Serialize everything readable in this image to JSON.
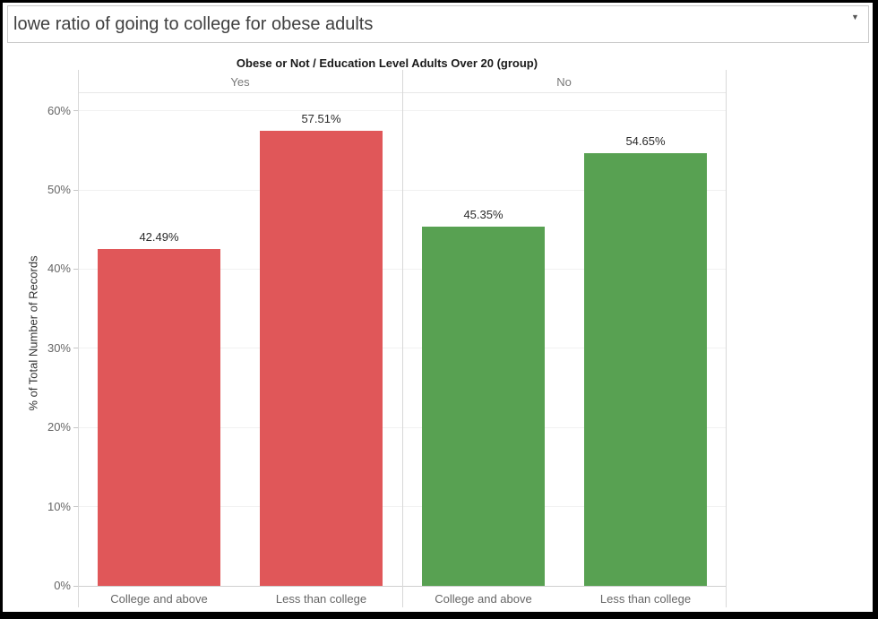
{
  "window": {
    "background": "#ffffff",
    "border_color": "#000000"
  },
  "query_box": {
    "value": "lowe ratio of going to college for obese adults",
    "caret_icon": "▼"
  },
  "chart_data": {
    "type": "bar",
    "title": "Obese or Not / Education Level Adults Over 20 (group)",
    "xlabel": "",
    "ylabel": "% of Total Number of Records",
    "ylim": [
      0,
      62.3
    ],
    "grid": "horizontal-light",
    "legend": "none",
    "yticks": [
      {
        "value": 0,
        "label": "0%"
      },
      {
        "value": 10,
        "label": "10%"
      },
      {
        "value": 20,
        "label": "20%"
      },
      {
        "value": 30,
        "label": "30%"
      },
      {
        "value": 40,
        "label": "40%"
      },
      {
        "value": 50,
        "label": "50%"
      },
      {
        "value": 60,
        "label": "60%"
      }
    ],
    "groups": [
      {
        "label": "Yes",
        "color": "#e05759",
        "categories": [
          "College and above",
          "Less than college"
        ],
        "values": [
          42.49,
          57.51
        ],
        "value_labels": [
          "42.49%",
          "57.51%"
        ]
      },
      {
        "label": "No",
        "color": "#58a152",
        "categories": [
          "College and above",
          "Less than college"
        ],
        "values": [
          45.35,
          54.65
        ],
        "value_labels": [
          "45.35%",
          "54.65%"
        ]
      }
    ]
  }
}
